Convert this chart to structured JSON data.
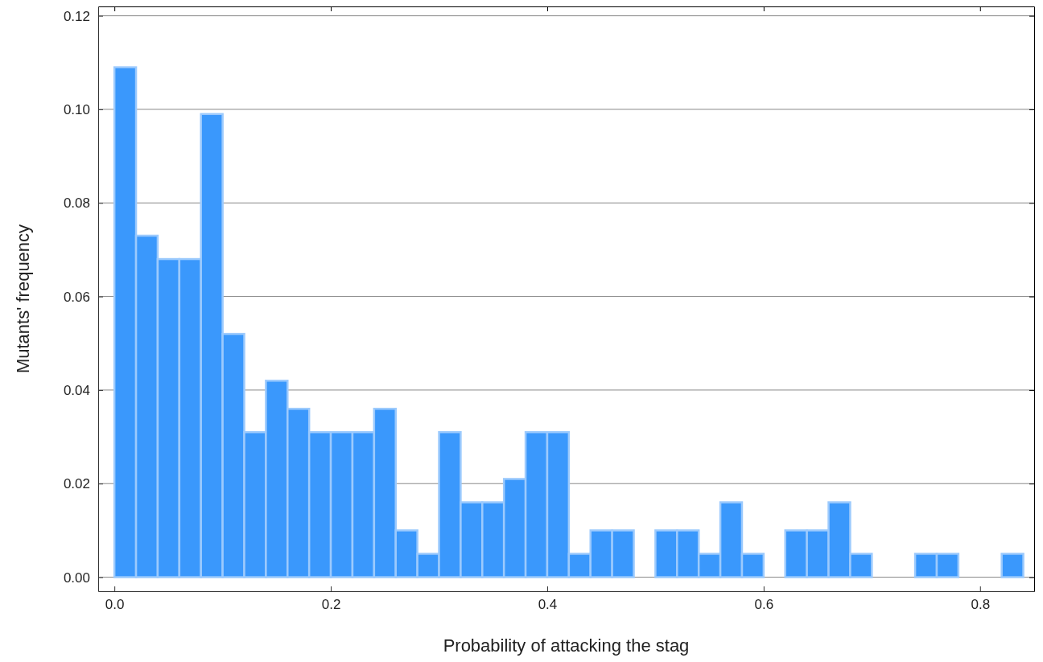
{
  "chart_data": {
    "type": "histogram",
    "xlabel": "Probability of attacking the stag",
    "ylabel": "Mutants' frequency",
    "bins": [
      0,
      0.02,
      0.04,
      0.06,
      0.08,
      0.1,
      0.12,
      0.14,
      0.16,
      0.18,
      0.2,
      0.22,
      0.24,
      0.26,
      0.28,
      0.3,
      0.32,
      0.34,
      0.36,
      0.38,
      0.4,
      0.42,
      0.44,
      0.46,
      0.48,
      0.5,
      0.52,
      0.54,
      0.56,
      0.58,
      0.6,
      0.62,
      0.64,
      0.66,
      0.68,
      0.7,
      0.72,
      0.74,
      0.76,
      0.78,
      0.8,
      0.82,
      0.84
    ],
    "values": [
      0.109,
      0.073,
      0.068,
      0.068,
      0.099,
      0.052,
      0.031,
      0.042,
      0.036,
      0.031,
      0.031,
      0.031,
      0.036,
      0.01,
      0.005,
      0.031,
      0.016,
      0.016,
      0.021,
      0.031,
      0.031,
      0.005,
      0.01,
      0.01,
      0,
      0.01,
      0.01,
      0.005,
      0.016,
      0.005,
      0,
      0.01,
      0.01,
      0.016,
      0.005,
      0,
      0,
      0.005,
      0.005,
      0,
      0,
      0.005
    ],
    "color": "#3a98fc",
    "xlim": [
      -0.015,
      0.85
    ],
    "ylim": [
      -0.003,
      0.122
    ],
    "xticks": [
      {
        "value": 0,
        "label": "0.0"
      },
      {
        "value": 0.2,
        "label": "0.2"
      },
      {
        "value": 0.4,
        "label": "0.4"
      },
      {
        "value": 0.6,
        "label": "0.6"
      },
      {
        "value": 0.8,
        "label": "0.8"
      }
    ],
    "yticks": [
      {
        "value": 0,
        "label": "0.00"
      },
      {
        "value": 0.02,
        "label": "0.02"
      },
      {
        "value": 0.04,
        "label": "0.04"
      },
      {
        "value": 0.06,
        "label": "0.06"
      },
      {
        "value": 0.08,
        "label": "0.08"
      },
      {
        "value": 0.1,
        "label": "0.10"
      },
      {
        "value": 0.12,
        "label": "0.12"
      }
    ],
    "grid": "y"
  }
}
